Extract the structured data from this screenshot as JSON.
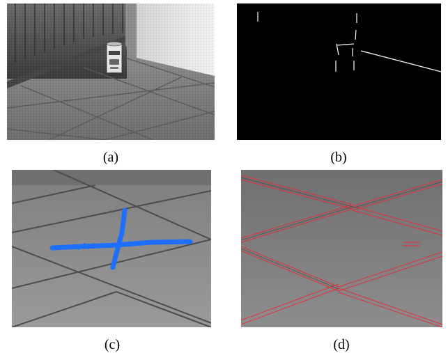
{
  "figure": {
    "panels": [
      {
        "id": "a",
        "label": "(a)",
        "content": "grayscale-photo-can-on-tiled-floor"
      },
      {
        "id": "b",
        "label": "(b)",
        "content": "edge-detection-result-on-black"
      },
      {
        "id": "c",
        "label": "(c)",
        "content": "floor-tile-crop-with-blue-detected-cross"
      },
      {
        "id": "d",
        "label": "(d)",
        "content": "floor-tile-crop-with-red-grout-line-overlay"
      }
    ],
    "colors": {
      "background": "#ffffff",
      "edge_map_background": "#000000",
      "edge_lines": "#ffffff",
      "detection_blue": "#1f6fff",
      "detection_red": "#e0303a"
    }
  }
}
